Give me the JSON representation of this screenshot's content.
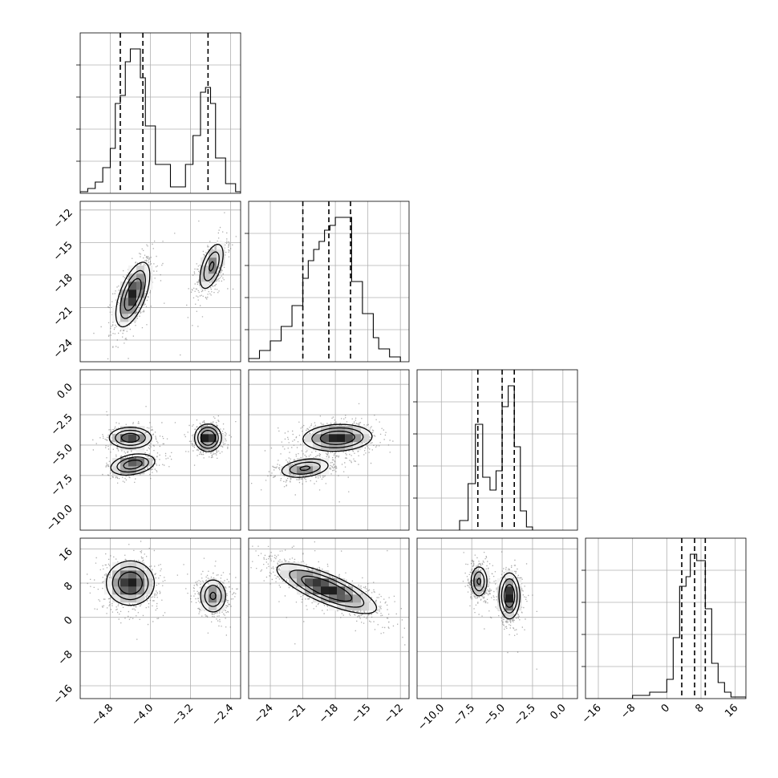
{
  "chart_data": {
    "type": "corner",
    "title": "",
    "n_params": 4,
    "param_labels": [
      "",
      "",
      "",
      ""
    ],
    "ranges": [
      [
        -5.4,
        -2.2
      ],
      [
        -26.0,
        -11.2
      ],
      [
        -12.0,
        1.2
      ],
      [
        -19.0,
        18.5
      ]
    ],
    "ticks": [
      [
        "-4.8",
        "-4.0",
        "-3.2",
        "-2.4"
      ],
      [
        "-24",
        "-21",
        "-18",
        "-15",
        "-12"
      ],
      [
        "-10.0",
        "-7.5",
        "-5.0",
        "-2.5",
        "0.0"
      ],
      [
        "-16",
        "-8",
        "0",
        "8",
        "16"
      ]
    ],
    "grid": true,
    "histograms": [
      {
        "param": 0,
        "quantiles": [
          -4.6,
          -4.15,
          -2.85
        ],
        "bins_x": [
          -5.4,
          -5.25,
          -5.1,
          -4.95,
          -4.8,
          -4.7,
          -4.6,
          -4.5,
          -4.4,
          -4.3,
          -4.2,
          -4.1,
          -4.0,
          -3.9,
          -3.8,
          -3.6,
          -3.45,
          -3.3,
          -3.15,
          -3.0,
          -2.9,
          -2.8,
          -2.7,
          -2.6,
          -2.5,
          -2.4,
          -2.3,
          -2.2
        ],
        "counts": [
          0.01,
          0.03,
          0.07,
          0.16,
          0.28,
          0.56,
          0.61,
          0.82,
          0.9,
          0.9,
          0.72,
          0.42,
          0.42,
          0.18,
          0.18,
          0.04,
          0.04,
          0.18,
          0.36,
          0.63,
          0.66,
          0.56,
          0.22,
          0.22,
          0.06,
          0.06,
          0.01
        ]
      },
      {
        "param": 1,
        "quantiles": [
          -21.0,
          -18.6,
          -16.6
        ],
        "bins_x": [
          -26.0,
          -25.0,
          -24.0,
          -23.0,
          -22.0,
          -21.0,
          -20.5,
          -20.0,
          -19.5,
          -19.0,
          -18.5,
          -18.0,
          -17.5,
          -16.5,
          -16.0,
          -15.5,
          -14.5,
          -14.0,
          -13.0,
          -12.0
        ],
        "counts": [
          0.02,
          0.07,
          0.13,
          0.22,
          0.35,
          0.52,
          0.63,
          0.7,
          0.75,
          0.82,
          0.85,
          0.9,
          0.9,
          0.5,
          0.5,
          0.3,
          0.15,
          0.08,
          0.03
        ]
      },
      {
        "param": 2,
        "quantiles": [
          -7.0,
          -5.0,
          -4.0
        ],
        "bins_x": [
          -8.5,
          -7.8,
          -7.2,
          -6.6,
          -6.0,
          -5.5,
          -5.0,
          -4.5,
          -4.0,
          -3.5,
          -3.0,
          -2.5
        ],
        "counts": [
          0.06,
          0.29,
          0.66,
          0.33,
          0.25,
          0.37,
          0.77,
          0.9,
          0.52,
          0.12,
          0.02
        ]
      },
      {
        "param": 3,
        "quantiles": [
          3.5,
          6.5,
          9.0
        ],
        "bins_x": [
          -19.0,
          -16.0,
          -12.0,
          -8.0,
          -4.0,
          0.0,
          1.5,
          3.0,
          4.5,
          5.5,
          7.0,
          9.0,
          10.5,
          12.0,
          13.5,
          15.0,
          18.5
        ],
        "counts": [
          0.0,
          0.0,
          0.0,
          0.02,
          0.04,
          0.12,
          0.38,
          0.7,
          0.76,
          0.9,
          0.86,
          0.56,
          0.22,
          0.1,
          0.04,
          0.01
        ]
      }
    ],
    "density_2d": [
      {
        "x_param": 0,
        "y_param": 1,
        "modes": [
          {
            "cx": -4.35,
            "cy": -19.8,
            "sx": 0.17,
            "sy": 1.5,
            "rho": 0.6,
            "w": 0.6
          },
          {
            "cx": -2.78,
            "cy": -17.2,
            "sx": 0.13,
            "sy": 1.15,
            "rho": 0.55,
            "w": 0.4
          }
        ]
      },
      {
        "x_param": 0,
        "y_param": 2,
        "modes": [
          {
            "cx": -4.4,
            "cy": -4.4,
            "sx": 0.22,
            "sy": 0.45,
            "rho": 0.0,
            "w": 0.3
          },
          {
            "cx": -4.35,
            "cy": -6.6,
            "sx": 0.23,
            "sy": 0.45,
            "rho": 0.3,
            "w": 0.3
          },
          {
            "cx": -2.85,
            "cy": -4.4,
            "sx": 0.13,
            "sy": 0.55,
            "rho": 0.0,
            "w": 0.4
          }
        ]
      },
      {
        "x_param": 1,
        "y_param": 2,
        "modes": [
          {
            "cx": -17.8,
            "cy": -4.4,
            "sx": 1.6,
            "sy": 0.55,
            "rho": 0.1,
            "w": 0.6
          },
          {
            "cx": -20.8,
            "cy": -6.9,
            "sx": 1.2,
            "sy": 0.42,
            "rho": 0.3,
            "w": 0.4
          }
        ]
      },
      {
        "x_param": 0,
        "y_param": 3,
        "modes": [
          {
            "cx": -4.4,
            "cy": 8.0,
            "sx": 0.24,
            "sy": 2.6,
            "rho": 0.0,
            "w": 0.6
          },
          {
            "cx": -2.75,
            "cy": 5.0,
            "sx": 0.14,
            "sy": 2.1,
            "rho": 0.0,
            "w": 0.4
          }
        ]
      },
      {
        "x_param": 1,
        "y_param": 3,
        "modes": [
          {
            "cx": -18.8,
            "cy": 6.7,
            "sx": 2.3,
            "sy": 2.9,
            "rho": -0.78,
            "w": 1.0
          }
        ]
      },
      {
        "x_param": 2,
        "y_param": 3,
        "modes": [
          {
            "cx": -6.9,
            "cy": 8.4,
            "sx": 0.36,
            "sy": 1.9,
            "rho": 0.0,
            "w": 0.4
          },
          {
            "cx": -4.4,
            "cy": 5.0,
            "sx": 0.43,
            "sy": 2.7,
            "rho": 0.0,
            "w": 0.6
          }
        ]
      }
    ]
  }
}
